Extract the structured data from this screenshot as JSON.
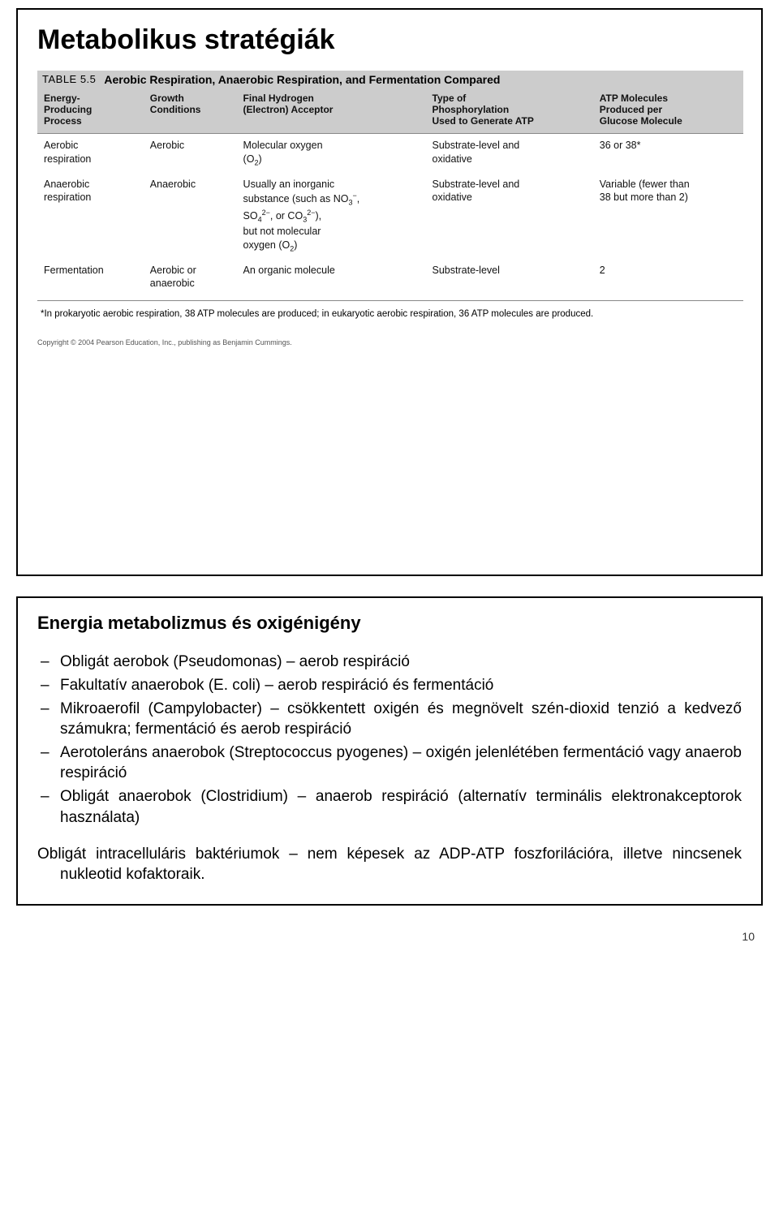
{
  "slide1": {
    "title": "Metabolikus stratégiák",
    "table": {
      "label": "TABLE 5.5",
      "caption": "Aerobic Respiration, Anaerobic Respiration, and Fermentation Compared",
      "columns": [
        "Energy-\nProducing\nProcess",
        "Growth\nConditions",
        "Final Hydrogen\n(Electron) Acceptor",
        "Type of\nPhosphorylation\nUsed to Generate ATP",
        "ATP Molecules\nProduced per\nGlucose Molecule"
      ],
      "rows": [
        {
          "process": "Aerobic respiration",
          "growth": "Aerobic",
          "acceptor": "Molecular oxygen (O₂)",
          "phosph": "Substrate-level and oxidative",
          "atp": "36 or 38*"
        },
        {
          "process": "Anaerobic respiration",
          "growth": "Anaerobic",
          "acceptor": "Usually an inorganic substance (such as NO₃⁻, SO₄²⁻, or CO₃²⁻), but not molecular oxygen (O₂)",
          "phosph": "Substrate-level and oxidative",
          "atp": "Variable (fewer than 38 but more than 2)"
        },
        {
          "process": "Fermentation",
          "growth": "Aerobic or anaerobic",
          "acceptor": "An organic molecule",
          "phosph": "Substrate-level",
          "atp": "2"
        }
      ],
      "footnote": "*In prokaryotic aerobic respiration, 38 ATP molecules are produced; in eukaryotic aerobic respiration, 36 ATP molecules are produced.",
      "copyright": "Copyright © 2004 Pearson Education, Inc., publishing as Benjamin Cummings."
    }
  },
  "slide2": {
    "title": "Energia metabolizmus és oxigénigény",
    "items": [
      "Obligát aerobok (Pseudomonas) – aerob respiráció",
      "Fakultatív anaerobok (E. coli) – aerob respiráció és fermentáció",
      "Mikroaerofil (Campylobacter) – csökkentett oxigén és megnövelt szén-dioxid tenzió a kedvező számukra; fermentáció és aerob respiráció",
      "Aerotoleráns anaerobok (Streptococcus pyogenes) – oxigén jelenlétében fermentáció vagy anaerob respiráció",
      "Obligát anaerobok (Clostridium) – anaerob respiráció (alternatív terminális elektronakceptorok használata)"
    ],
    "para": "Obligát intracelluláris baktériumok – nem képesek az ADP-ATP foszforilációra, illetve nincsenek nukleotid kofaktoraik."
  },
  "pagenum": "10",
  "style": {
    "page_bg": "#ffffff",
    "border_color": "#000000",
    "table_header_bg": "#cccccc",
    "title_fontsize": 34,
    "body_fontsize": 19
  }
}
